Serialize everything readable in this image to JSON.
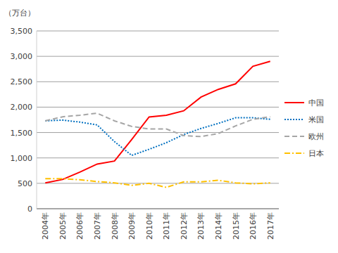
{
  "chart_data": {
    "type": "line",
    "y_label": "（万台）",
    "categories": [
      "2004年",
      "2005年",
      "2006年",
      "2007年",
      "2008年",
      "2009年",
      "2010年",
      "2011年",
      "2012年",
      "2013年",
      "2014年",
      "2015年",
      "2016年",
      "2017年"
    ],
    "series": [
      {
        "name": "中国",
        "color": "#ff0000",
        "line_style": "solid",
        "values": [
          507,
          576,
          722,
          879,
          938,
          1364,
          1806,
          1841,
          1927,
          2198,
          2349,
          2459,
          2803,
          2902
        ]
      },
      {
        "name": "米国",
        "color": "#0070c0",
        "line_style": "dotted",
        "values": [
          1730,
          1745,
          1705,
          1650,
          1320,
          1050,
          1170,
          1300,
          1460,
          1580,
          1680,
          1790,
          1790,
          1760
        ]
      },
      {
        "name": "欧州",
        "color": "#a6a6a6",
        "line_style": "dashed",
        "values": [
          1730,
          1810,
          1840,
          1880,
          1730,
          1620,
          1570,
          1570,
          1440,
          1420,
          1480,
          1630,
          1760,
          1810
        ]
      },
      {
        "name": "日本",
        "color": "#ffc000",
        "line_style": "dashdot",
        "values": [
          590,
          590,
          570,
          535,
          510,
          460,
          500,
          420,
          530,
          530,
          560,
          510,
          490,
          510
        ]
      }
    ],
    "ylim": [
      0,
      3500
    ],
    "yticks": [
      0,
      500,
      {
        "value": 1000,
        "label": "1,000"
      },
      {
        "value": 1500,
        "label": "1,500"
      },
      {
        "value": 2000,
        "label": "2,000"
      },
      {
        "value": 2500,
        "label": "2,500"
      },
      {
        "value": 3000,
        "label": "3,000"
      },
      {
        "value": 3500,
        "label": "3,500"
      }
    ],
    "grid": true,
    "legend": "right"
  }
}
